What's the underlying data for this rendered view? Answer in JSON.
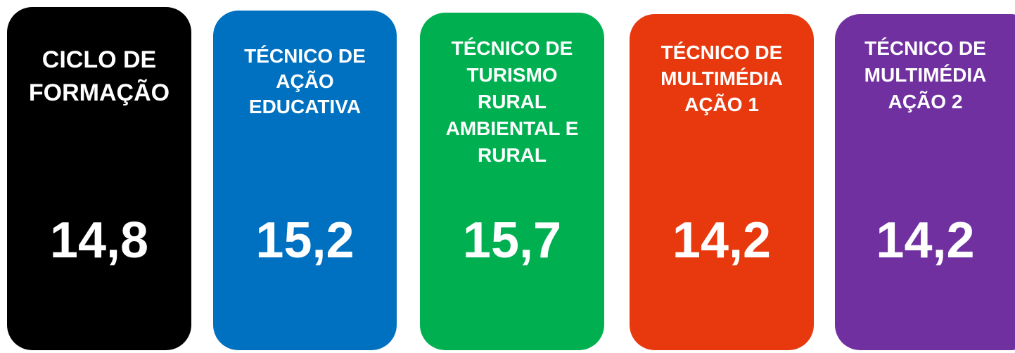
{
  "cards": [
    {
      "title_lines": [
        "CICLO DE",
        "FORMAÇÃO"
      ],
      "value": "14,8"
    },
    {
      "title_lines": [
        "TÉCNICO DE",
        "AÇÃO",
        "EDUCATIVA"
      ],
      "value": "15,2"
    },
    {
      "title_lines": [
        "TÉCNICO DE",
        "TURISMO",
        "RURAL",
        "AMBIENTAL E",
        "RURAL"
      ],
      "value": "15,7"
    },
    {
      "title_lines": [
        "TÉCNICO DE",
        "MULTIMÉDIA",
        "AÇÃO 1"
      ],
      "value": "14,2"
    },
    {
      "title_lines": [
        "TÉCNICO DE",
        "MULTIMÉDIA",
        "AÇÃO 2"
      ],
      "value": "14,2"
    }
  ]
}
